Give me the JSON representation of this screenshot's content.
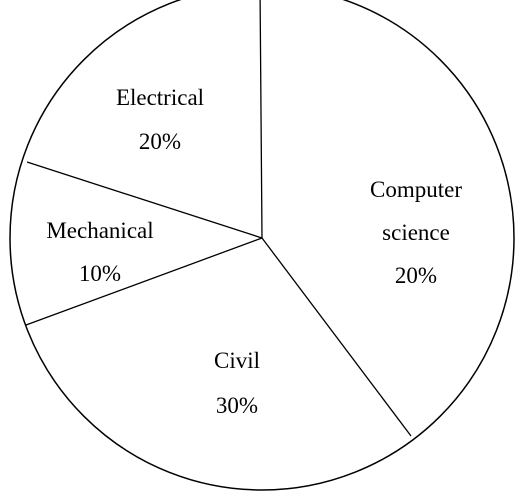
{
  "chart_data": {
    "type": "pie",
    "title": "",
    "slices": [
      {
        "label_lines": [
          "Computer",
          "science"
        ],
        "percent_label": "20%",
        "value": 20
      },
      {
        "label_lines": [
          "Civil"
        ],
        "percent_label": "30%",
        "value": 30
      },
      {
        "label_lines": [
          "Mechanical"
        ],
        "percent_label": "10%",
        "value": 10
      },
      {
        "label_lines": [
          "Electrical"
        ],
        "percent_label": "20%",
        "value": 20
      }
    ],
    "colors": {
      "fill": "#ffffff",
      "stroke": "#000000"
    }
  }
}
